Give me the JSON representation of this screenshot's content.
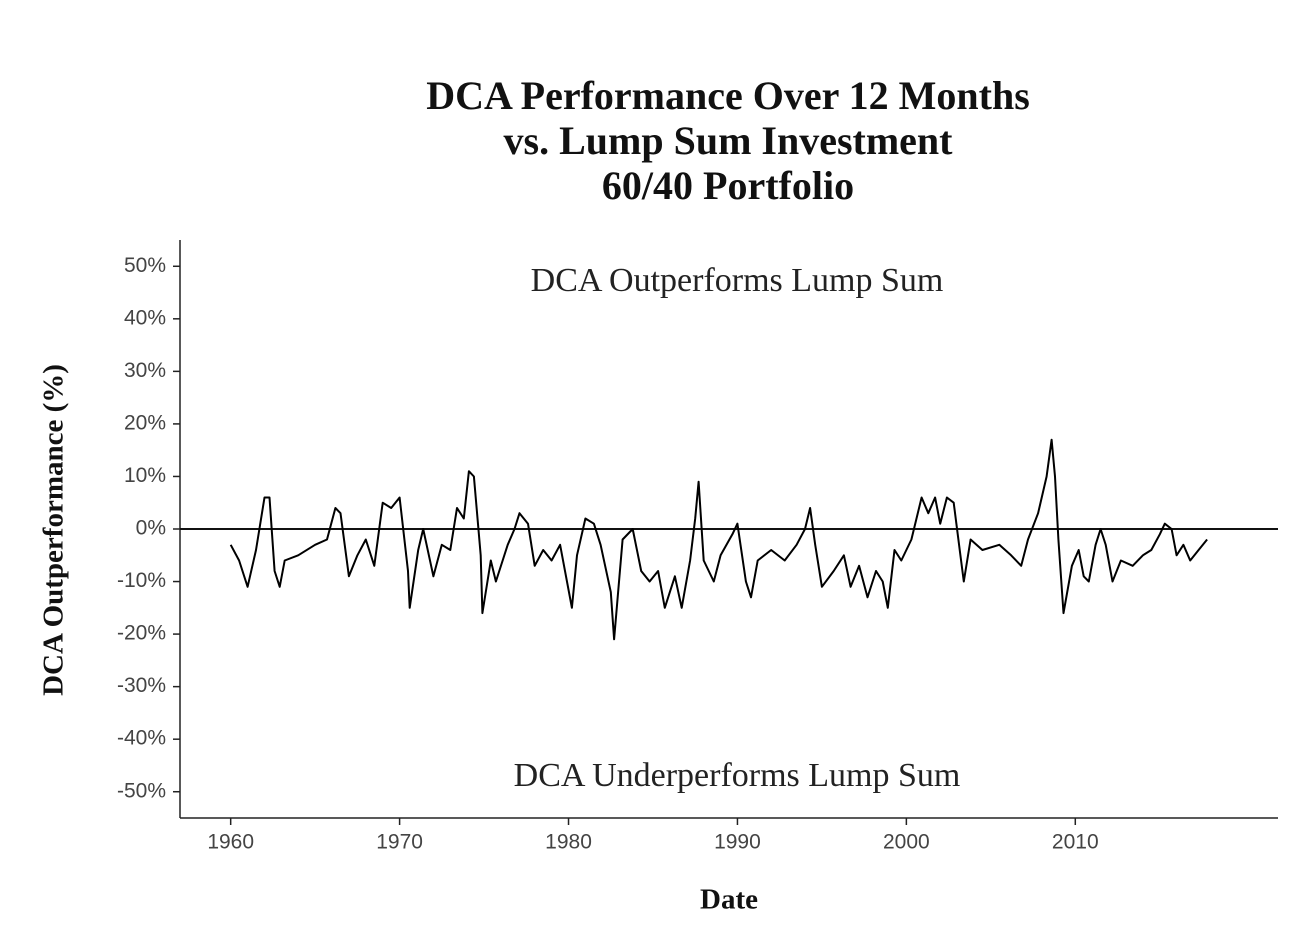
{
  "chart_data": {
    "type": "line",
    "title": [
      "DCA Performance Over 12 Months",
      "vs. Lump Sum Investment",
      "60/40 Portfolio"
    ],
    "xlabel": "Date",
    "ylabel": "DCA Outperformance (%)",
    "annotations": [
      "DCA Outperforms Lump Sum",
      "DCA Underperforms Lump Sum"
    ],
    "xlim": [
      1957,
      2022
    ],
    "ylim": [
      -55,
      55
    ],
    "xticks": [
      1960,
      1970,
      1980,
      1990,
      2000,
      2010
    ],
    "yticks": [
      {
        "value": -50,
        "label": "-50%"
      },
      {
        "value": -40,
        "label": "-40%"
      },
      {
        "value": -30,
        "label": "-30%"
      },
      {
        "value": -20,
        "label": "-20%"
      },
      {
        "value": -10,
        "label": "-10%"
      },
      {
        "value": 0,
        "label": "0%"
      },
      {
        "value": 10,
        "label": "10%"
      },
      {
        "value": 20,
        "label": "20%"
      },
      {
        "value": 30,
        "label": "30%"
      },
      {
        "value": 40,
        "label": "40%"
      },
      {
        "value": 50,
        "label": "50%"
      }
    ],
    "hline": 0,
    "grid": false,
    "series": [
      {
        "name": "DCA Outperformance",
        "color": "#000000",
        "x": [
          1960,
          1960.5,
          1961,
          1961.5,
          1962,
          1962.3,
          1962.6,
          1962.9,
          1963.2,
          1964,
          1965,
          1965.7,
          1966.2,
          1966.5,
          1967,
          1967.5,
          1968,
          1968.5,
          1969,
          1969.5,
          1970,
          1970.5,
          1970.6,
          1971.1,
          1971.4,
          1972,
          1972.5,
          1973,
          1973.4,
          1973.8,
          1974.1,
          1974.4,
          1974.8,
          1974.9,
          1975.4,
          1975.7,
          1976.4,
          1976.8,
          1977.1,
          1977.6,
          1978,
          1978.5,
          1979,
          1979.5,
          1980.2,
          1980.5,
          1981,
          1981.5,
          1981.9,
          1982.5,
          1982.7,
          1983.2,
          1983.8,
          1984.3,
          1984.8,
          1985.3,
          1985.7,
          1986.3,
          1986.7,
          1987.2,
          1987.5,
          1987.7,
          1988,
          1988.6,
          1989,
          1989.7,
          1990,
          1990.5,
          1990.8,
          1991.2,
          1992,
          1992.8,
          1993.5,
          1994,
          1994.3,
          1994.6,
          1995,
          1995.7,
          1996.3,
          1996.7,
          1997.2,
          1997.7,
          1998.2,
          1998.6,
          1998.9,
          1999.3,
          1999.7,
          2000.3,
          2000.6,
          2000.9,
          2001.3,
          2001.7,
          2002,
          2002.4,
          2002.8,
          2003.2,
          2003.4,
          2003.8,
          2004.5,
          2005.5,
          2006.2,
          2006.8,
          2007.2,
          2007.8,
          2008.3,
          2008.6,
          2008.8,
          2009,
          2009.3,
          2009.8,
          2010.2,
          2010.5,
          2010.8,
          2011.2,
          2011.5,
          2011.8,
          2012.2,
          2012.7,
          2013.4,
          2014,
          2014.5,
          2015,
          2015.3,
          2015.7,
          2016,
          2016.4,
          2016.8,
          2017.3,
          2017.8
        ],
        "values": [
          -3,
          -6,
          -11,
          -4,
          6,
          6,
          -8,
          -11,
          -6,
          -5,
          -3,
          -2,
          4,
          3,
          -9,
          -5,
          -2,
          -7,
          5,
          4,
          6,
          -8,
          -15,
          -4,
          0,
          -9,
          -3,
          -4,
          4,
          2,
          11,
          10,
          -5,
          -16,
          -6,
          -10,
          -3,
          0,
          3,
          1,
          -7,
          -4,
          -6,
          -3,
          -15,
          -5,
          2,
          1,
          -3,
          -12,
          -21,
          -2,
          0,
          -8,
          -10,
          -8,
          -15,
          -9,
          -15,
          -6,
          2,
          9,
          -6,
          -10,
          -5,
          -1,
          1,
          -10,
          -13,
          -6,
          -4,
          -6,
          -3,
          0,
          4,
          -3,
          -11,
          -8,
          -5,
          -11,
          -7,
          -13,
          -8,
          -10,
          -15,
          -4,
          -6,
          -2,
          2,
          6,
          3,
          6,
          1,
          6,
          5,
          -5,
          -10,
          -2,
          -4,
          -3,
          -5,
          -7,
          -2,
          3,
          10,
          17,
          10,
          -2,
          -16,
          -7,
          -4,
          -9,
          -10,
          -3,
          0,
          -3,
          -10,
          -6,
          -7,
          -5,
          -4,
          -1,
          1,
          0,
          -5,
          -3,
          -6,
          -4,
          -2
        ]
      }
    ]
  }
}
